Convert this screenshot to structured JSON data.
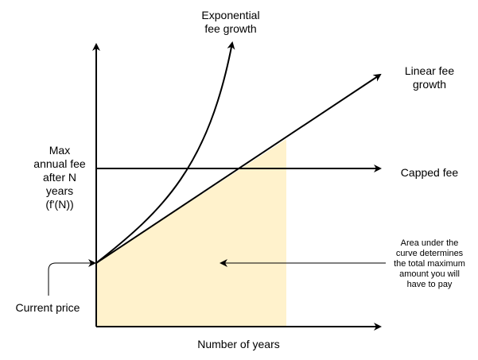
{
  "labels": {
    "exponential": "Exponential\nfee growth",
    "linear": "Linear fee\ngrowth",
    "capped": "Capped fee",
    "y_axis": "Max\nannual fee\nafter N\nyears\n(f'(N))",
    "current_price": "Current price",
    "x_axis": "Number of years",
    "area_note": "Area under the\ncurve determines\nthe total maximum\namount you will\nhave to pay"
  },
  "colors": {
    "area_fill": "#fff2cc",
    "stroke": "#000000"
  }
}
